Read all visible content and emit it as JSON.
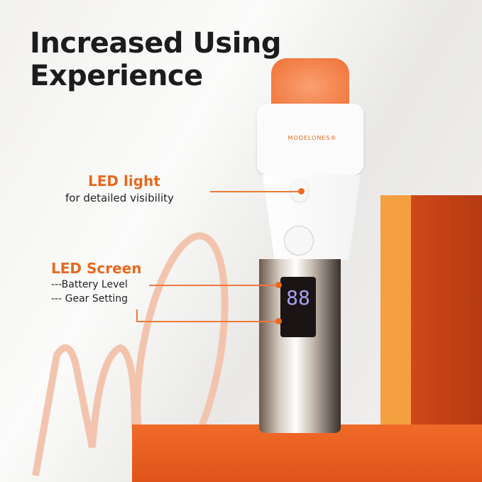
{
  "title_lines": [
    "Increased Using",
    "Experience"
  ],
  "brand": "MODELONES®",
  "callouts": [
    {
      "heading": "LED light",
      "lines": [
        "for detailed visibility"
      ]
    },
    {
      "heading": "LED Screen",
      "lines": [
        "---Battery Level",
        "--- Gear Setting"
      ]
    }
  ],
  "colors": {
    "accent": "#e8691f",
    "pedestal": "#e85a1e",
    "block": "#f09030"
  }
}
